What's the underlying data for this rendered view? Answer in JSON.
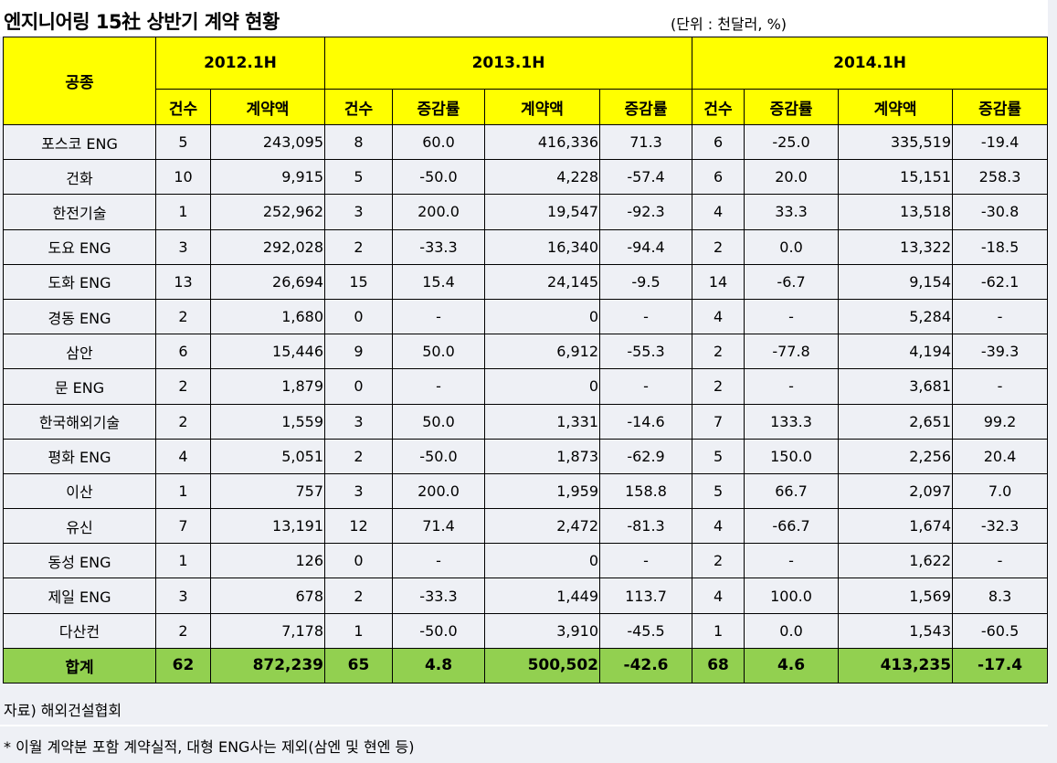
{
  "title": "엔지니어링 15社 상반기 계약 현황",
  "unit": "(단위 : 천달러, %)",
  "headers": {
    "category": "공종",
    "periods": [
      "2012.1H",
      "2013.1H",
      "2014.1H"
    ],
    "count": "건수",
    "amount": "계약액",
    "change": "증감률"
  },
  "rows": [
    {
      "name": "포스코 ENG",
      "c12": "5",
      "a12": "243,095",
      "c13": "8",
      "g13c": "60.0",
      "a13": "416,336",
      "g13a": "71.3",
      "c14": "6",
      "g14c": "-25.0",
      "a14": "335,519",
      "g14a": "-19.4"
    },
    {
      "name": "건화",
      "c12": "10",
      "a12": "9,915",
      "c13": "5",
      "g13c": "-50.0",
      "a13": "4,228",
      "g13a": "-57.4",
      "c14": "6",
      "g14c": "20.0",
      "a14": "15,151",
      "g14a": "258.3"
    },
    {
      "name": "한전기술",
      "c12": "1",
      "a12": "252,962",
      "c13": "3",
      "g13c": "200.0",
      "a13": "19,547",
      "g13a": "-92.3",
      "c14": "4",
      "g14c": "33.3",
      "a14": "13,518",
      "g14a": "-30.8"
    },
    {
      "name": "도요 ENG",
      "c12": "3",
      "a12": "292,028",
      "c13": "2",
      "g13c": "-33.3",
      "a13": "16,340",
      "g13a": "-94.4",
      "c14": "2",
      "g14c": "0.0",
      "a14": "13,322",
      "g14a": "-18.5"
    },
    {
      "name": "도화 ENG",
      "c12": "13",
      "a12": "26,694",
      "c13": "15",
      "g13c": "15.4",
      "a13": "24,145",
      "g13a": "-9.5",
      "c14": "14",
      "g14c": "-6.7",
      "a14": "9,154",
      "g14a": "-62.1"
    },
    {
      "name": "경동 ENG",
      "c12": "2",
      "a12": "1,680",
      "c13": "0",
      "g13c": "-",
      "a13": "0",
      "g13a": "-",
      "c14": "4",
      "g14c": "-",
      "a14": "5,284",
      "g14a": "-"
    },
    {
      "name": "삼안",
      "c12": "6",
      "a12": "15,446",
      "c13": "9",
      "g13c": "50.0",
      "a13": "6,912",
      "g13a": "-55.3",
      "c14": "2",
      "g14c": "-77.8",
      "a14": "4,194",
      "g14a": "-39.3"
    },
    {
      "name": "문 ENG",
      "c12": "2",
      "a12": "1,879",
      "c13": "0",
      "g13c": "-",
      "a13": "0",
      "g13a": "-",
      "c14": "2",
      "g14c": "-",
      "a14": "3,681",
      "g14a": "-"
    },
    {
      "name": "한국해외기술",
      "c12": "2",
      "a12": "1,559",
      "c13": "3",
      "g13c": "50.0",
      "a13": "1,331",
      "g13a": "-14.6",
      "c14": "7",
      "g14c": "133.3",
      "a14": "2,651",
      "g14a": "99.2"
    },
    {
      "name": "평화 ENG",
      "c12": "4",
      "a12": "5,051",
      "c13": "2",
      "g13c": "-50.0",
      "a13": "1,873",
      "g13a": "-62.9",
      "c14": "5",
      "g14c": "150.0",
      "a14": "2,256",
      "g14a": "20.4"
    },
    {
      "name": "이산",
      "c12": "1",
      "a12": "757",
      "c13": "3",
      "g13c": "200.0",
      "a13": "1,959",
      "g13a": "158.8",
      "c14": "5",
      "g14c": "66.7",
      "a14": "2,097",
      "g14a": "7.0"
    },
    {
      "name": "유신",
      "c12": "7",
      "a12": "13,191",
      "c13": "12",
      "g13c": "71.4",
      "a13": "2,472",
      "g13a": "-81.3",
      "c14": "4",
      "g14c": "-66.7",
      "a14": "1,674",
      "g14a": "-32.3"
    },
    {
      "name": "동성 ENG",
      "c12": "1",
      "a12": "126",
      "c13": "0",
      "g13c": "-",
      "a13": "0",
      "g13a": "-",
      "c14": "2",
      "g14c": "-",
      "a14": "1,622",
      "g14a": "-"
    },
    {
      "name": "제일 ENG",
      "c12": "3",
      "a12": "678",
      "c13": "2",
      "g13c": "-33.3",
      "a13": "1,449",
      "g13a": "113.7",
      "c14": "4",
      "g14c": "100.0",
      "a14": "1,569",
      "g14a": "8.3"
    },
    {
      "name": "다산컨",
      "c12": "2",
      "a12": "7,178",
      "c13": "1",
      "g13c": "-50.0",
      "a13": "3,910",
      "g13a": "-45.5",
      "c14": "1",
      "g14c": "0.0",
      "a14": "1,543",
      "g14a": "-60.5"
    }
  ],
  "total": {
    "name": "합계",
    "c12": "62",
    "a12": "872,239",
    "c13": "65",
    "g13c": "4.8",
    "a13": "500,502",
    "g13a": "-42.6",
    "c14": "68",
    "g14c": "4.6",
    "a14": "413,235",
    "g14a": "-17.4"
  },
  "source": "자료) 해외건설협회",
  "footnote": "* 이월 계약분 포함 계약실적, 대형 ENG사는 제외(삼엔 및 현엔 등)",
  "colors": {
    "header_bg": "#ffff00",
    "total_bg": "#92d050",
    "cell_bg": "#eef0f5"
  }
}
